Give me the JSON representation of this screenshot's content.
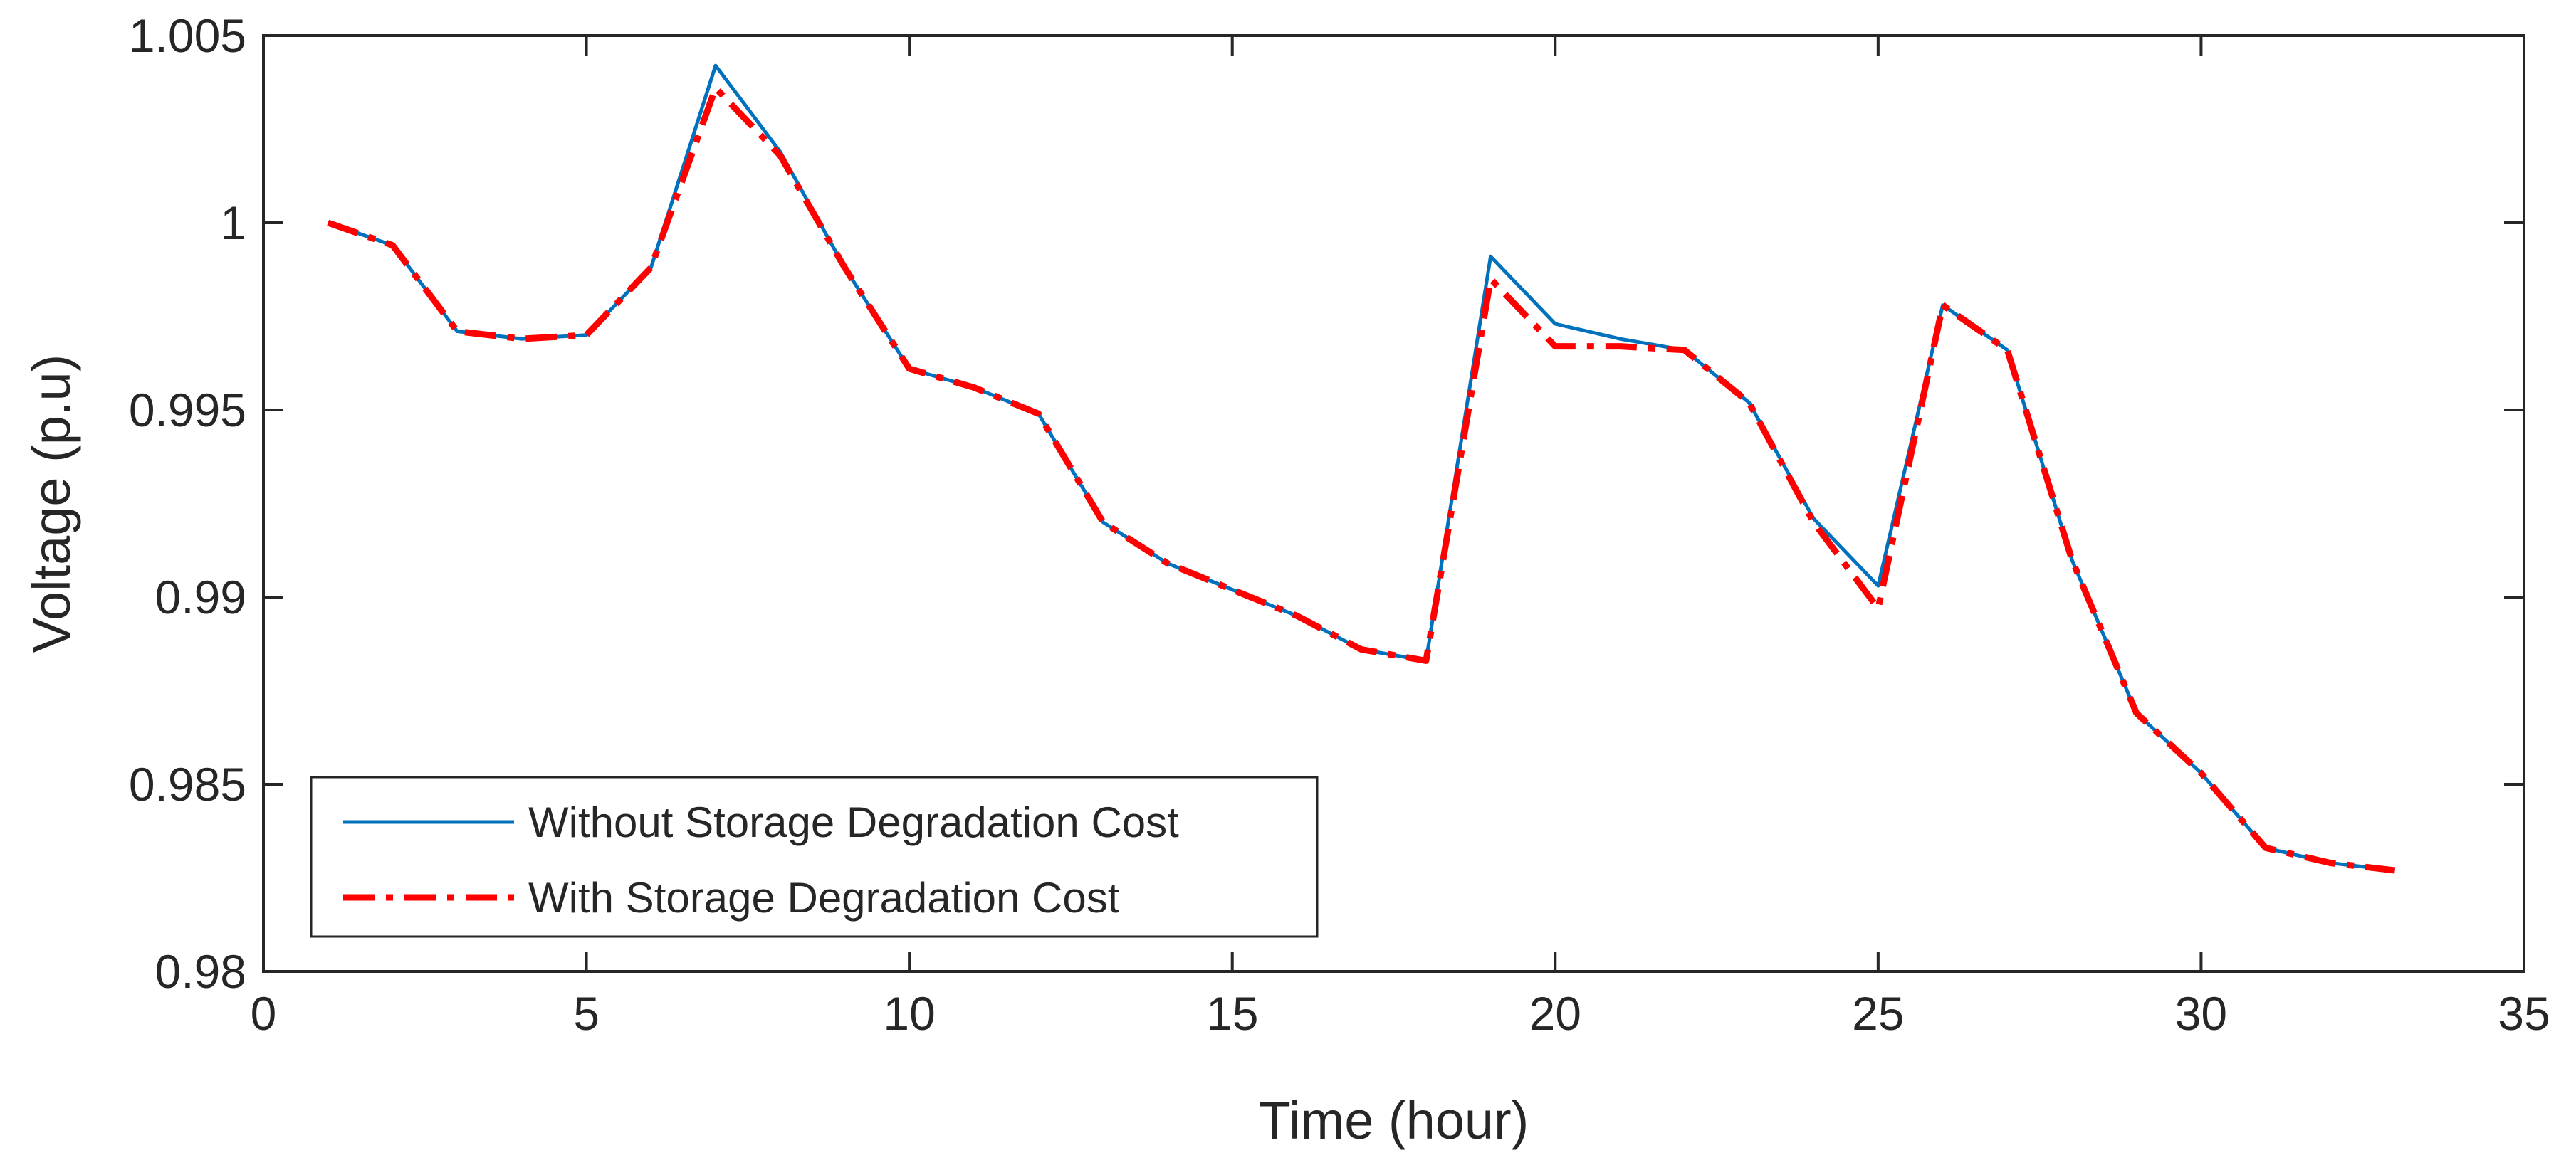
{
  "chart_data": {
    "type": "line",
    "title": "",
    "xlabel": "Time (hour)",
    "ylabel": "Voltage (p.u)",
    "xlim": [
      0,
      35
    ],
    "ylim": [
      0.98,
      1.005
    ],
    "xticks": [
      0,
      5,
      10,
      15,
      20,
      25,
      30,
      35
    ],
    "xtick_labels": [
      "0",
      "5",
      "10",
      "15",
      "20",
      "25",
      "30",
      "35"
    ],
    "yticks": [
      0.98,
      0.985,
      0.99,
      0.995,
      1.0,
      1.005
    ],
    "ytick_labels": [
      "0.98",
      "0.985",
      "0.99",
      "0.995",
      "1",
      "1.005"
    ],
    "grid": false,
    "legend_position": "lower-left",
    "x": [
      1,
      2,
      3,
      4,
      5,
      6,
      7,
      8,
      9,
      10,
      11,
      12,
      13,
      14,
      15,
      16,
      17,
      18,
      19,
      20,
      21,
      22,
      23,
      24,
      25,
      26,
      27,
      28,
      29,
      30,
      31,
      32,
      33
    ],
    "series": [
      {
        "name": "Without Storage Degradation Cost",
        "color": "#0072BD",
        "style": "solid",
        "values": [
          1.0,
          0.9994,
          0.9971,
          0.9969,
          0.997,
          0.9988,
          1.0042,
          1.0019,
          0.9988,
          0.9961,
          0.9956,
          0.9949,
          0.992,
          0.9909,
          0.9902,
          0.9895,
          0.9886,
          0.9883,
          0.9991,
          0.9973,
          0.9969,
          0.9966,
          0.9952,
          0.9921,
          0.9903,
          0.9978,
          0.9966,
          0.991,
          0.9869,
          0.9853,
          0.9833,
          0.9829,
          0.9827
        ]
      },
      {
        "name": "With Storage Degradation Cost",
        "color": "#FF0000",
        "style": "dashdot",
        "values": [
          1.0,
          0.9994,
          0.9971,
          0.9969,
          0.997,
          0.9988,
          1.0036,
          1.0018,
          0.9988,
          0.9961,
          0.9956,
          0.9949,
          0.992,
          0.9909,
          0.9902,
          0.9895,
          0.9886,
          0.9883,
          0.9985,
          0.9967,
          0.9967,
          0.9966,
          0.9952,
          0.992,
          0.9897,
          0.9978,
          0.9966,
          0.991,
          0.9869,
          0.9853,
          0.9833,
          0.9829,
          0.9827
        ]
      }
    ]
  }
}
